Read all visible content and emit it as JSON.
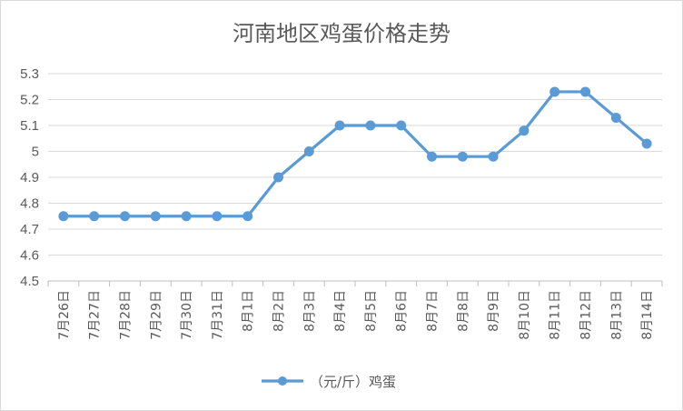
{
  "chart_data": {
    "type": "line",
    "title": "河南地区鸡蛋价格走势",
    "xlabel": "",
    "ylabel": "",
    "ylim": [
      4.5,
      5.3
    ],
    "yticks": [
      "5.3",
      "5.2",
      "5.1",
      "5",
      "4.9",
      "4.8",
      "4.7",
      "4.6",
      "4.5"
    ],
    "grid": true,
    "legend_position": "bottom",
    "categories": [
      "7月26日",
      "7月27日",
      "7月28日",
      "7月29日",
      "7月30日",
      "7月31日",
      "8月1日",
      "8月2日",
      "8月3日",
      "8月4日",
      "8月5日",
      "8月6日",
      "8月7日",
      "8月8日",
      "8月9日",
      "8月10日",
      "8月11日",
      "8月12日",
      "8月13日",
      "8月14日"
    ],
    "series": [
      {
        "name": "（元/斤）鸡蛋",
        "color": "#5b9bd5",
        "values": [
          4.75,
          4.75,
          4.75,
          4.75,
          4.75,
          4.75,
          4.75,
          4.9,
          5.0,
          5.1,
          5.1,
          5.1,
          4.98,
          4.98,
          4.98,
          5.08,
          5.23,
          5.23,
          5.13,
          5.03
        ]
      }
    ]
  }
}
